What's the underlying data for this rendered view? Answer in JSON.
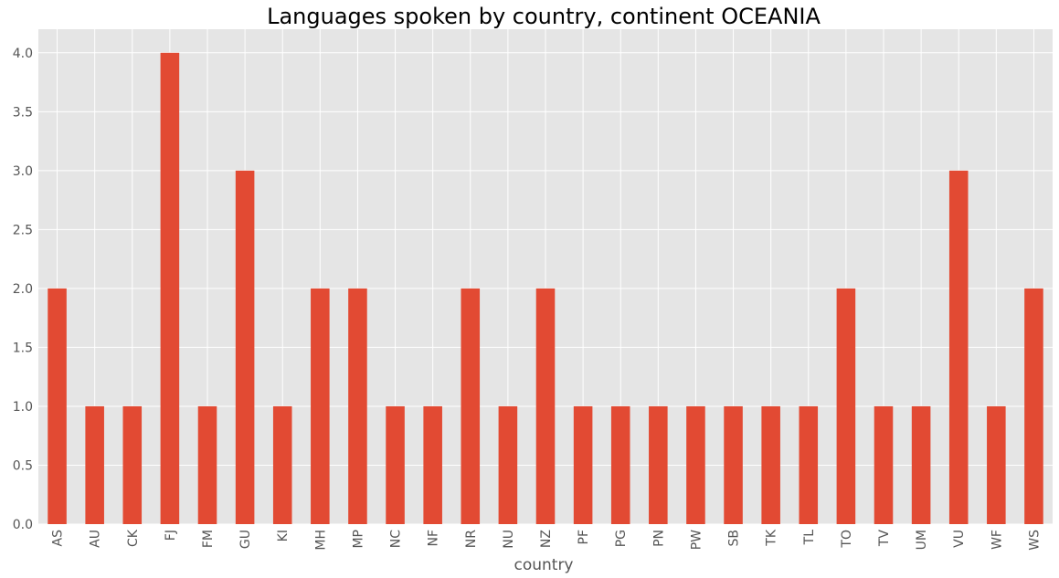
{
  "chart_data": {
    "type": "bar",
    "title": "Languages spoken by country, continent OCEANIA",
    "xlabel": "country",
    "ylabel": "",
    "categories": [
      "AS",
      "AU",
      "CK",
      "FJ",
      "FM",
      "GU",
      "KI",
      "MH",
      "MP",
      "NC",
      "NF",
      "NR",
      "NU",
      "NZ",
      "PF",
      "PG",
      "PN",
      "PW",
      "SB",
      "TK",
      "TL",
      "TO",
      "TV",
      "UM",
      "VU",
      "WF",
      "WS"
    ],
    "values": [
      2,
      1,
      1,
      4,
      1,
      3,
      1,
      2,
      2,
      1,
      1,
      2,
      1,
      2,
      1,
      1,
      1,
      1,
      1,
      1,
      1,
      2,
      1,
      1,
      3,
      1,
      2
    ],
    "ylim": [
      0,
      4.2
    ],
    "yticks": [
      "0.0",
      "0.5",
      "1.0",
      "1.5",
      "2.0",
      "2.5",
      "3.0",
      "3.5",
      "4.0"
    ],
    "grid": true,
    "legend": "none",
    "colors": {
      "bar": "#E24A33",
      "plot_bg": "#E5E5E5",
      "grid": "#FFFFFF"
    }
  }
}
